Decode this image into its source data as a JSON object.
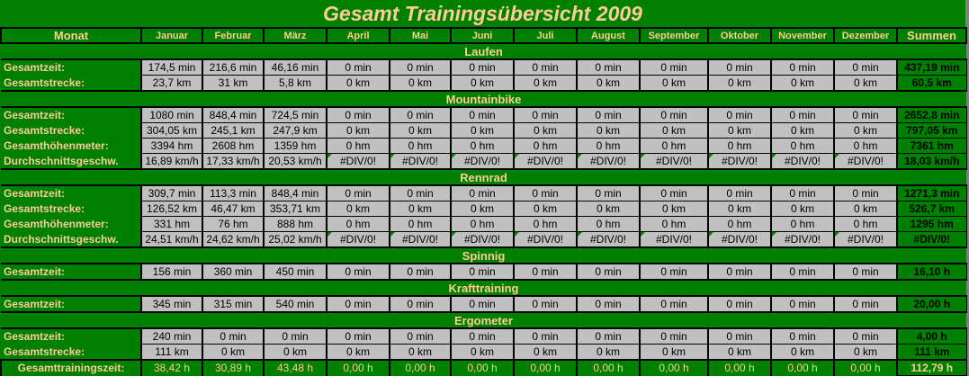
{
  "title": "Gesamt Trainingsübersicht 2009",
  "header": {
    "first": "Monat",
    "months": [
      "Januar",
      "Februar",
      "März",
      "April",
      "Mai",
      "Juni",
      "Juli",
      "August",
      "September",
      "Oktober",
      "November",
      "Dezember"
    ],
    "sum": "Summen"
  },
  "sections": [
    {
      "name": "Laufen",
      "rows": [
        {
          "label": "Gesamtzeit:",
          "values": [
            "174,5 min",
            "216,6 min",
            "46,16 min",
            "0 min",
            "0 min",
            "0 min",
            "0 min",
            "0 min",
            "0 min",
            "0 min",
            "0 min",
            "0 min"
          ],
          "sum": "437,19 min"
        },
        {
          "label": "Gesamtstrecke:",
          "values": [
            "23,7 km",
            "31 km",
            "5,8 km",
            "0 km",
            "0 km",
            "0 km",
            "0 km",
            "0 km",
            "0 km",
            "0 km",
            "0 km",
            "0 km"
          ],
          "sum": "60,5 km"
        }
      ]
    },
    {
      "name": "Mountainbike",
      "rows": [
        {
          "label": "Gesamtzeit:",
          "values": [
            "1080 min",
            "848,4 min",
            "724,5 min",
            "0 min",
            "0 min",
            "0 min",
            "0 min",
            "0 min",
            "0 min",
            "0 min",
            "0 min",
            "0 min"
          ],
          "sum": "2652,8 min"
        },
        {
          "label": "Gesamtstrecke:",
          "values": [
            "304,05 km",
            "245,1 km",
            "247,9 km",
            "0 km",
            "0 km",
            "0 km",
            "0 km",
            "0 km",
            "0 km",
            "0 km",
            "0 km",
            "0 km"
          ],
          "sum": "797,05 km"
        },
        {
          "label": "Gesamthöhenmeter:",
          "values": [
            "3394 hm",
            "2608 hm",
            "1359 hm",
            "0 hm",
            "0 hm",
            "0 hm",
            "0 hm",
            "0 hm",
            "0 hm",
            "0 hm",
            "0 hm",
            "0 hm"
          ],
          "sum": "7361 hm"
        },
        {
          "label": "Durchschnittsgeschw.",
          "values": [
            "16,89 km/h",
            "17,33 km/h",
            "20,53 km/h",
            "#DIV/0!",
            "#DIV/0!",
            "#DIV/0!",
            "#DIV/0!",
            "#DIV/0!",
            "#DIV/0!",
            "#DIV/0!",
            "#DIV/0!",
            "#DIV/0!"
          ],
          "sum": "18,03 km/h"
        }
      ]
    },
    {
      "name": "Rennrad",
      "rows": [
        {
          "label": "Gesamtzeit:",
          "values": [
            "309,7 min",
            "113,3 min",
            "848,4 min",
            "0 min",
            "0 min",
            "0 min",
            "0 min",
            "0 min",
            "0 min",
            "0 min",
            "0 min",
            "0 min"
          ],
          "sum": "1271,3 min"
        },
        {
          "label": "Gesamtstrecke:",
          "values": [
            "126,52 km",
            "46,47 km",
            "353,71 km",
            "0 km",
            "0 km",
            "0 km",
            "0 km",
            "0 km",
            "0 km",
            "0 km",
            "0 km",
            "0 km"
          ],
          "sum": "526,7 km"
        },
        {
          "label": "Gesamthöhenmeter:",
          "values": [
            "331 hm",
            "76 hm",
            "888 hm",
            "0 hm",
            "0 hm",
            "0 hm",
            "0 hm",
            "0 hm",
            "0 hm",
            "0 hm",
            "0 hm",
            "0 hm"
          ],
          "sum": "1295 hm"
        },
        {
          "label": "Durchschnittsgeschw.",
          "values": [
            "24,51 km/h",
            "24,62 km/h",
            "25,02 km/h",
            "#DIV/0!",
            "#DIV/0!",
            "#DIV/0!",
            "#DIV/0!",
            "#DIV/0!",
            "#DIV/0!",
            "#DIV/0!",
            "#DIV/0!",
            "#DIV/0!"
          ],
          "sum": "#DIV/0!"
        }
      ]
    },
    {
      "name": "Spinnig",
      "rows": [
        {
          "label": "Gesamtzeit:",
          "values": [
            "156 min",
            "360 min",
            "450 min",
            "0 min",
            "0 min",
            "0 min",
            "0 min",
            "0 min",
            "0 min",
            "0 min",
            "0 min",
            "0 min"
          ],
          "sum": "16,10 h"
        }
      ]
    },
    {
      "name": "Krafttraining",
      "rows": [
        {
          "label": "Gesamtzeit:",
          "values": [
            "345 min",
            "315 min",
            "540 min",
            "0 min",
            "0 min",
            "0 min",
            "0 min",
            "0 min",
            "0 min",
            "0 min",
            "0 min",
            "0 min"
          ],
          "sum": "20,00 h"
        }
      ]
    },
    {
      "name": "Ergometer",
      "rows": [
        {
          "label": "Gesamtzeit:",
          "values": [
            "240 min",
            "0 min",
            "0 min",
            "0 min",
            "0 min",
            "0 min",
            "0 min",
            "0 min",
            "0 min",
            "0 min",
            "0 min",
            "0 min"
          ],
          "sum": "4,00 h"
        },
        {
          "label": "Gesamtstrecke:",
          "values": [
            "111 km",
            "0 km",
            "0 km",
            "0 km",
            "0 km",
            "0 km",
            "0 km",
            "0 km",
            "0 km",
            "0 km",
            "0 km",
            "0 km"
          ],
          "sum": "111 km"
        }
      ]
    }
  ],
  "total": {
    "label": "Gesamttrainingszeit:",
    "values": [
      "38,42 h",
      "30,89 h",
      "43,48 h",
      "0,00 h",
      "0,00 h",
      "0,00 h",
      "0,00 h",
      "0,00 h",
      "0,00 h",
      "0,00 h",
      "0,00 h",
      "0,00 h"
    ],
    "sum": "112,79 h"
  },
  "colors": {
    "background": "#008000",
    "label": "#FFCC99",
    "cell": "#C0C0C0",
    "error_marker": "#008000"
  }
}
